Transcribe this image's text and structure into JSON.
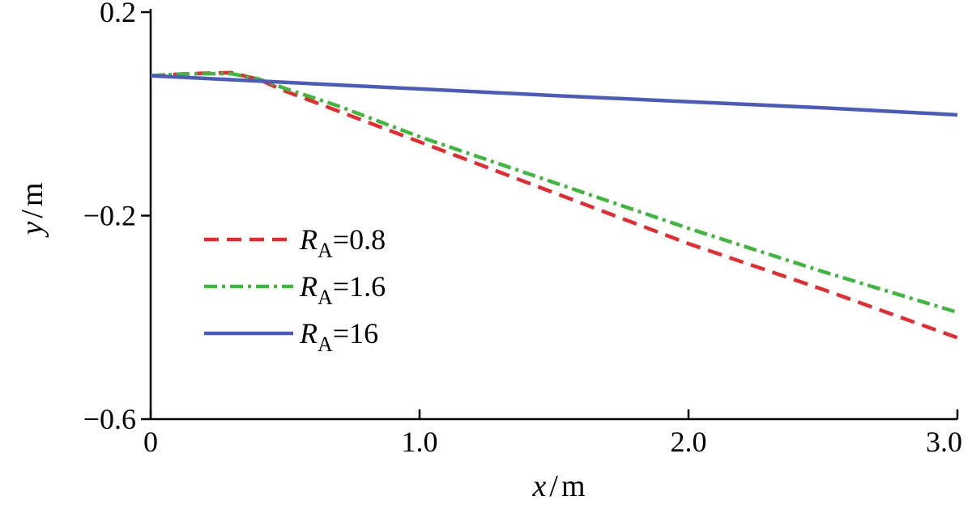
{
  "chart_data": {
    "type": "line",
    "xlabel_var": "x",
    "xlabel_unit": "m",
    "ylabel_var": "y",
    "ylabel_unit": "m",
    "xlim": [
      0,
      3.0
    ],
    "ylim": [
      -0.6,
      0.2
    ],
    "xticks": [
      0,
      1.0,
      2.0,
      3.0
    ],
    "xtick_labels": [
      "0",
      "1.0",
      "2.0",
      "3.0"
    ],
    "yticks": [
      0.2,
      -0.2,
      -0.6
    ],
    "ytick_labels": [
      "0.2",
      "−0.2",
      "−0.6"
    ],
    "grid": false,
    "legend_position": "left",
    "series": [
      {
        "name": "R_A=0.8",
        "legend_symbol": "R",
        "legend_sub": "A",
        "legend_value": "=0.8",
        "color": "#e8292f",
        "style": "dashed",
        "x": [
          0.0,
          0.1,
          0.2,
          0.3,
          0.4,
          0.5,
          0.7,
          1.0,
          1.5,
          2.0,
          2.5,
          3.0
        ],
        "y": [
          0.075,
          0.078,
          0.08,
          0.081,
          0.068,
          0.045,
          0.005,
          -0.055,
          -0.155,
          -0.255,
          -0.345,
          -0.44
        ]
      },
      {
        "name": "R_A=1.6",
        "legend_symbol": "R",
        "legend_sub": "A",
        "legend_value": "=1.6",
        "color": "#3cb83a",
        "style": "dashdot",
        "x": [
          0.0,
          0.1,
          0.2,
          0.3,
          0.4,
          0.5,
          0.7,
          1.0,
          1.5,
          2.0,
          2.5,
          3.0
        ],
        "y": [
          0.075,
          0.078,
          0.079,
          0.079,
          0.069,
          0.05,
          0.015,
          -0.045,
          -0.135,
          -0.225,
          -0.31,
          -0.39
        ]
      },
      {
        "name": "R_A=16",
        "legend_symbol": "R",
        "legend_sub": "A",
        "legend_value": "=16",
        "color": "#4a5bbd",
        "style": "solid",
        "x": [
          0.0,
          0.5,
          1.0,
          1.5,
          2.0,
          2.5,
          3.0
        ],
        "y": [
          0.075,
          0.062,
          0.049,
          0.036,
          0.024,
          0.012,
          -0.002
        ]
      }
    ]
  }
}
